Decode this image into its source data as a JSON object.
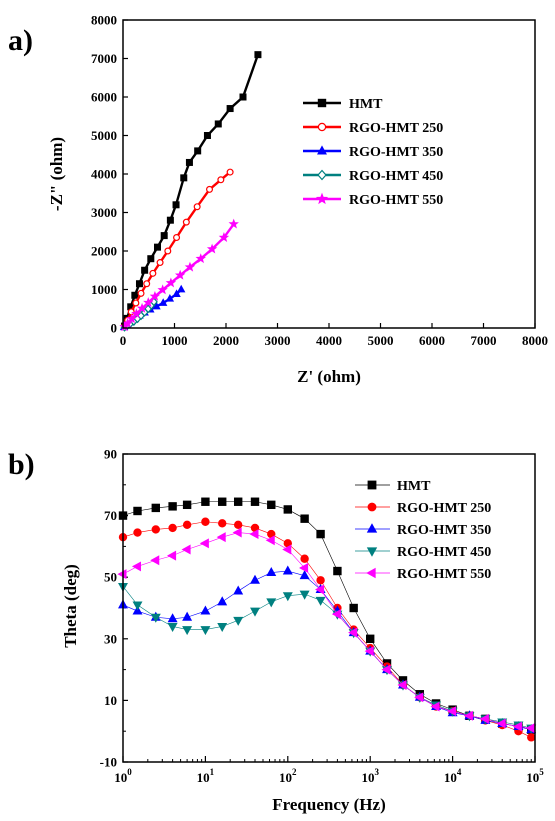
{
  "figure": {
    "panel_a_label": "a)",
    "panel_b_label": "b)"
  },
  "chart_data": [
    {
      "type": "line",
      "xlabel": "Z' (ohm)",
      "ylabel": "-Z\" (ohm)",
      "xlim": [
        0,
        8000
      ],
      "ylim": [
        0,
        8000
      ],
      "x_ticks": [
        0,
        1000,
        2000,
        3000,
        4000,
        5000,
        6000,
        7000,
        8000
      ],
      "y_ticks": [
        0,
        1000,
        2000,
        3000,
        4000,
        5000,
        6000,
        7000,
        8000
      ],
      "x_tick_labels": [
        "0",
        "1000",
        "2000",
        "3000",
        "4000",
        "5000",
        "6000",
        "7000",
        "8000"
      ],
      "y_tick_labels": [
        "0",
        "1000",
        "2000",
        "3000",
        "4000",
        "5000",
        "6000",
        "7000",
        "8000"
      ],
      "legend_position": "center-right",
      "series": [
        {
          "name": "HMT",
          "color": "#000000",
          "marker": "square",
          "filled": true,
          "x": [
            30,
            80,
            150,
            230,
            320,
            420,
            540,
            670,
            800,
            920,
            1030,
            1180,
            1290,
            1450,
            1640,
            1850,
            2080,
            2330,
            2620
          ],
          "y": [
            50,
            250,
            550,
            850,
            1150,
            1500,
            1800,
            2100,
            2400,
            2800,
            3200,
            3900,
            4300,
            4600,
            5000,
            5300,
            5700,
            6000,
            7100
          ]
        },
        {
          "name": "RGO-HMT 250",
          "color": "#ff0000",
          "marker": "circle",
          "filled": false,
          "x": [
            30,
            90,
            160,
            250,
            350,
            460,
            580,
            720,
            870,
            1040,
            1230,
            1440,
            1680,
            1900,
            2080
          ],
          "y": [
            50,
            200,
            420,
            650,
            900,
            1150,
            1420,
            1700,
            2000,
            2350,
            2750,
            3150,
            3600,
            3850,
            4050
          ]
        },
        {
          "name": "RGO-HMT 350",
          "color": "#0000ff",
          "marker": "triangle-up",
          "filled": true,
          "x": [
            20,
            80,
            150,
            230,
            320,
            420,
            530,
            650,
            780,
            910,
            1040,
            1130
          ],
          "y": [
            20,
            80,
            150,
            230,
            320,
            400,
            480,
            560,
            650,
            760,
            880,
            1000
          ]
        },
        {
          "name": "RGO-HMT 450",
          "color": "#008080",
          "marker": "diamond",
          "filled": false,
          "x": [
            30,
            80,
            140,
            210,
            280,
            350,
            420,
            490,
            550,
            600
          ],
          "y": [
            20,
            60,
            110,
            170,
            240,
            320,
            410,
            500,
            590,
            680
          ]
        },
        {
          "name": "RGO-HMT 550",
          "color": "#ff00ff",
          "marker": "star",
          "filled": true,
          "x": [
            30,
            90,
            170,
            260,
            370,
            490,
            620,
            770,
            930,
            1110,
            1300,
            1510,
            1730,
            1960,
            2150
          ],
          "y": [
            30,
            120,
            240,
            370,
            510,
            660,
            820,
            990,
            1170,
            1370,
            1580,
            1800,
            2050,
            2350,
            2700
          ]
        }
      ]
    },
    {
      "type": "scatter",
      "xlabel": "Frequency (Hz)",
      "ylabel": "Theta (deg)",
      "x_scale": "log",
      "xlim": [
        1,
        100000
      ],
      "ylim": [
        -10,
        90
      ],
      "x_ticks": [
        1,
        10,
        100,
        1000,
        10000,
        100000
      ],
      "x_tick_labels": [
        {
          "base": "10",
          "exp": "0"
        },
        {
          "base": "10",
          "exp": "1"
        },
        {
          "base": "10",
          "exp": "2"
        },
        {
          "base": "10",
          "exp": "3"
        },
        {
          "base": "10",
          "exp": "4"
        },
        {
          "base": "10",
          "exp": "5"
        }
      ],
      "y_ticks": [
        -10,
        10,
        30,
        50,
        70,
        90
      ],
      "y_tick_labels": [
        "-10",
        "10",
        "30",
        "50",
        "70",
        "90"
      ],
      "legend_position": "top-right",
      "series": [
        {
          "name": "HMT",
          "color": "#000000",
          "marker": "square",
          "points": [
            [
              1,
              70
            ],
            [
              1.5,
              71.5
            ],
            [
              2.5,
              72.5
            ],
            [
              4,
              73
            ],
            [
              6,
              73.5
            ],
            [
              10,
              74.5
            ],
            [
              16,
              74.5
            ],
            [
              25,
              74.5
            ],
            [
              40,
              74.5
            ],
            [
              63,
              73.5
            ],
            [
              100,
              72
            ],
            [
              160,
              69
            ],
            [
              250,
              64
            ],
            [
              400,
              52
            ],
            [
              630,
              40
            ],
            [
              1000,
              30
            ],
            [
              1600,
              22
            ],
            [
              2500,
              16.5
            ],
            [
              4000,
              12
            ],
            [
              6300,
              9
            ],
            [
              10000,
              7
            ],
            [
              16000,
              5
            ],
            [
              25000,
              4
            ],
            [
              40000,
              2.5
            ],
            [
              63000,
              1.5
            ],
            [
              90000,
              0.5
            ]
          ]
        },
        {
          "name": "RGO-HMT 250",
          "color": "#ff0000",
          "marker": "circle",
          "points": [
            [
              1,
              63
            ],
            [
              1.5,
              64.5
            ],
            [
              2.5,
              65.5
            ],
            [
              4,
              66
            ],
            [
              6,
              67
            ],
            [
              10,
              68
            ],
            [
              16,
              67.5
            ],
            [
              25,
              67
            ],
            [
              40,
              66
            ],
            [
              63,
              64
            ],
            [
              100,
              61
            ],
            [
              160,
              56
            ],
            [
              250,
              49
            ],
            [
              400,
              40
            ],
            [
              630,
              33
            ],
            [
              1000,
              27
            ],
            [
              1600,
              21
            ],
            [
              2500,
              15
            ],
            [
              4000,
              11
            ],
            [
              6300,
              8
            ],
            [
              10000,
              6.5
            ],
            [
              16000,
              5
            ],
            [
              25000,
              3.5
            ],
            [
              40000,
              2
            ],
            [
              63000,
              0
            ],
            [
              90000,
              -2
            ]
          ]
        },
        {
          "name": "RGO-HMT 350",
          "color": "#0000ff",
          "marker": "triangle-up",
          "points": [
            [
              1,
              41
            ],
            [
              1.5,
              39
            ],
            [
              2.5,
              37
            ],
            [
              4,
              36.5
            ],
            [
              6,
              37
            ],
            [
              10,
              39
            ],
            [
              16,
              42
            ],
            [
              25,
              45.5
            ],
            [
              40,
              49
            ],
            [
              63,
              51.5
            ],
            [
              100,
              52
            ],
            [
              160,
              50.5
            ],
            [
              250,
              46
            ],
            [
              400,
              39
            ],
            [
              630,
              32
            ],
            [
              1000,
              26
            ],
            [
              1600,
              20
            ],
            [
              2500,
              15
            ],
            [
              4000,
              11
            ],
            [
              6300,
              8
            ],
            [
              10000,
              6
            ],
            [
              16000,
              5
            ],
            [
              25000,
              3.5
            ],
            [
              40000,
              2.5
            ],
            [
              63000,
              1.5
            ],
            [
              90000,
              0.5
            ]
          ]
        },
        {
          "name": "RGO-HMT 450",
          "color": "#008080",
          "marker": "triangle-down",
          "points": [
            [
              1,
              47
            ],
            [
              1.5,
              41
            ],
            [
              2.5,
              37
            ],
            [
              4,
              34
            ],
            [
              6,
              33
            ],
            [
              10,
              33
            ],
            [
              16,
              34
            ],
            [
              25,
              36
            ],
            [
              40,
              39
            ],
            [
              63,
              42
            ],
            [
              100,
              44
            ],
            [
              160,
              44.5
            ],
            [
              250,
              42.5
            ],
            [
              400,
              38
            ],
            [
              630,
              32
            ],
            [
              1000,
              26
            ],
            [
              1600,
              20
            ],
            [
              2500,
              15
            ],
            [
              4000,
              11
            ],
            [
              6300,
              8.5
            ],
            [
              10000,
              6.5
            ],
            [
              16000,
              5
            ],
            [
              25000,
              4
            ],
            [
              40000,
              3
            ],
            [
              63000,
              2
            ],
            [
              90000,
              1
            ]
          ]
        },
        {
          "name": "RGO-HMT 550",
          "color": "#ff00ff",
          "marker": "triangle-left",
          "points": [
            [
              1,
              51
            ],
            [
              1.5,
              53.5
            ],
            [
              2.5,
              55.5
            ],
            [
              4,
              57
            ],
            [
              6,
              59
            ],
            [
              10,
              61
            ],
            [
              16,
              63
            ],
            [
              25,
              64.5
            ],
            [
              40,
              64
            ],
            [
              63,
              62
            ],
            [
              100,
              59
            ],
            [
              160,
              53
            ],
            [
              250,
              46
            ],
            [
              400,
              38
            ],
            [
              630,
              32
            ],
            [
              1000,
              26
            ],
            [
              1600,
              20
            ],
            [
              2500,
              15
            ],
            [
              4000,
              11
            ],
            [
              6300,
              8
            ],
            [
              10000,
              6.5
            ],
            [
              16000,
              5
            ],
            [
              25000,
              4
            ],
            [
              40000,
              2.5
            ],
            [
              63000,
              1.5
            ],
            [
              90000,
              1
            ]
          ]
        }
      ]
    }
  ]
}
